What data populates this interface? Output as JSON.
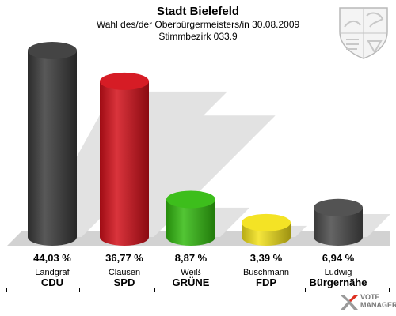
{
  "header": {
    "title": "Stadt Bielefeld",
    "subtitle": "Wahl des/der Oberbürgermeisters/in 30.08.2009",
    "district": "Stimmbezirk 033.9"
  },
  "chart_data": {
    "type": "bar",
    "title": "Stadt Bielefeld",
    "subtitle": "Wahl des/der Oberbürgermeisters/in 30.08.2009 — Stimmbezirk 033.9",
    "categories": [
      "CDU",
      "SPD",
      "GRÜNE",
      "FDP",
      "Bürgernähe"
    ],
    "candidates": [
      "Landgraf",
      "Clausen",
      "Weiß",
      "Buschmann",
      "Ludwig"
    ],
    "values": [
      44.03,
      36.77,
      8.87,
      3.39,
      6.94
    ],
    "value_labels": [
      "44,03 %",
      "36,77 %",
      "8,87 %",
      "3,39 %",
      "6,94 %"
    ],
    "colors": [
      "#3a3a3a",
      "#d4101a",
      "#33bb10",
      "#f3e21a",
      "#4a4a4a"
    ],
    "unit": "%",
    "xlabel": "",
    "ylabel": "",
    "grid": false,
    "legend": "none"
  },
  "branding": {
    "coat_of_arms": "nrw-coat-of-arms-icon",
    "logo_line1": "VOTE",
    "logo_line2": "MANAGER"
  }
}
